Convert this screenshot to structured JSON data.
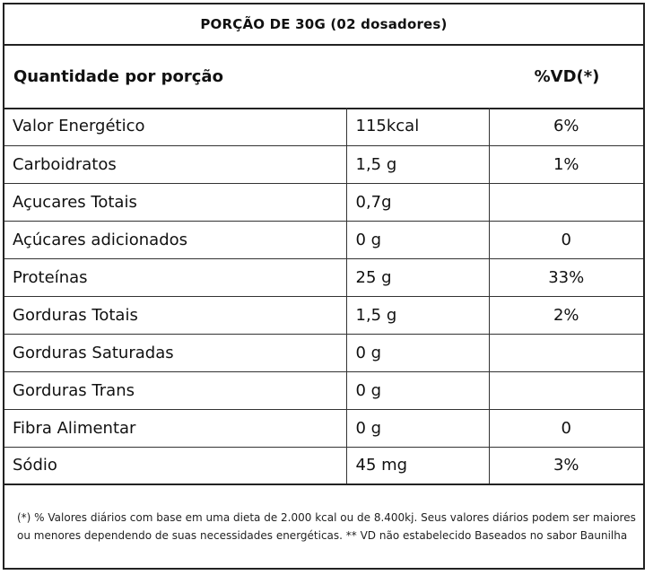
{
  "serving": "PORÇÃO DE 30G (02 dosadores)",
  "header": {
    "quantity_label": "Quantidade por porção",
    "vd_label": "%VD(*)"
  },
  "rows": [
    {
      "name": "Valor Energético",
      "amount": "115kcal",
      "vd": "6%"
    },
    {
      "name": "Carboidratos",
      "amount": "1,5 g",
      "vd": "1%"
    },
    {
      "name": "Açucares Totais",
      "amount": "0,7g",
      "vd": ""
    },
    {
      "name": "Açúcares adicionados",
      "amount": "0 g",
      "vd": "0"
    },
    {
      "name": "Proteínas",
      "amount": "25 g",
      "vd": "33%"
    },
    {
      "name": "Gorduras Totais",
      "amount": "1,5 g",
      "vd": "2%"
    },
    {
      "name": "Gorduras Saturadas",
      "amount": "0 g",
      "vd": ""
    },
    {
      "name": "Gorduras Trans",
      "amount": "0 g",
      "vd": ""
    },
    {
      "name": "Fibra Alimentar",
      "amount": "0 g",
      "vd": "0"
    },
    {
      "name": "Sódio",
      "amount": "45 mg",
      "vd": "3%"
    }
  ],
  "footnote": "(*) % Valores diários com base em uma dieta de 2.000 kcal ou de 8.400kj. Seus valores diários podem ser maiores ou menores dependendo de suas necessidades energéticas. ** VD não estabelecido Baseados no sabor Baunilha"
}
